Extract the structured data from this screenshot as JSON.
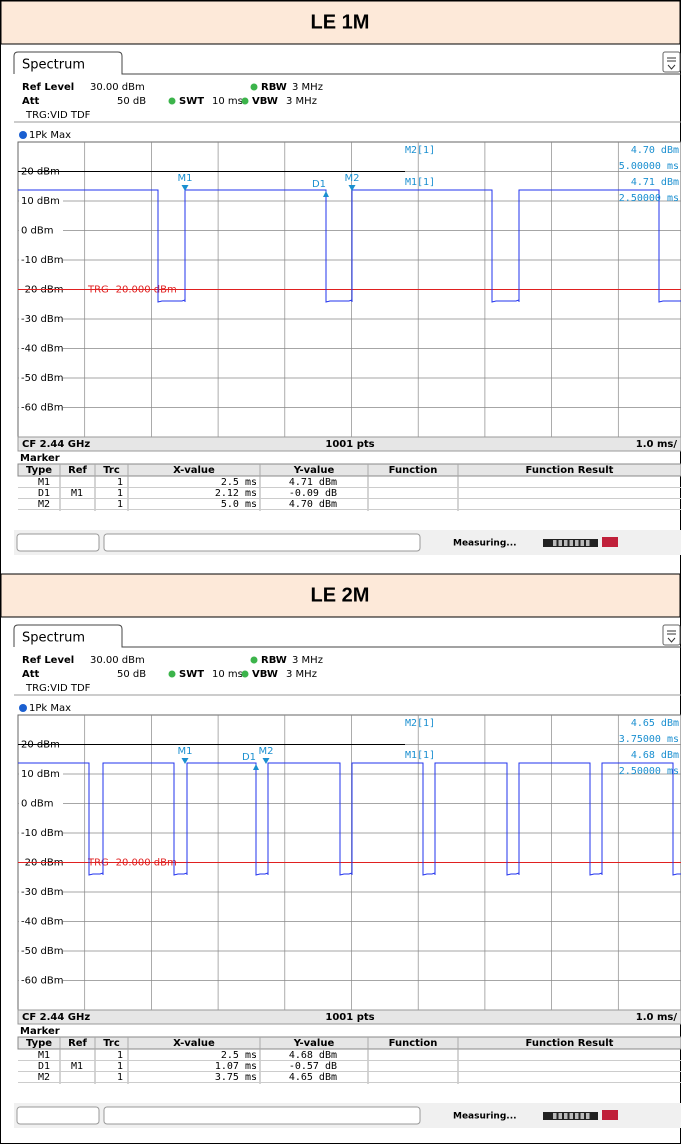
{
  "panels": [
    {
      "title": "LE 1M",
      "tab": "Spectrum",
      "ref_level_label": "Ref Level",
      "ref_level": "30.00 dBm",
      "att_label": "Att",
      "att": "50 dB",
      "swt_label": "SWT",
      "swt": "10 ms",
      "rbw_label": "RBW",
      "rbw": "3 MHz",
      "vbw_label": "VBW",
      "vbw": "3 MHz",
      "trigger": "TRG:VID TDF",
      "trace_label": "1Pk Max",
      "y_labels": [
        "20 dBm",
        "10 dBm",
        "0 dBm",
        "-10 dBm",
        "-20 dBm",
        "-30 dBm",
        "-40 dBm",
        "-50 dBm",
        "-60 dBm"
      ],
      "trigger_line": "TRG -20.000 dBm",
      "marker_readout": [
        {
          "name": "M2[1]",
          "value": "4.70 dBm",
          "x": "5.00000 ms"
        },
        {
          "name": "M1[1]",
          "value": "4.71 dBm",
          "x": "2.50000 ms"
        }
      ],
      "graph_markers": [
        "M1",
        "D1",
        "M2"
      ],
      "footer": {
        "cf": "CF 2.44 GHz",
        "pts": "1001 pts",
        "span": "1.0 ms/"
      },
      "marker_table": {
        "title": "Marker",
        "headers": [
          "Type",
          "Ref",
          "Trc",
          "X-value",
          "Y-value",
          "Function",
          "Function Result"
        ],
        "rows": [
          {
            "type": "M1",
            "trc": "1",
            "x": "2.5 ms",
            "y": "4.71 dBm"
          },
          {
            "type": "D1",
            "ref": "M1",
            "trc": "1",
            "x": "2.12 ms",
            "y": "-0.09 dB"
          },
          {
            "type": "M2",
            "trc": "1",
            "x": "5.0 ms",
            "y": "4.70 dBm"
          }
        ]
      },
      "status": "Measuring..."
    },
    {
      "title": "LE 2M",
      "tab": "Spectrum",
      "ref_level_label": "Ref Level",
      "ref_level": "30.00 dBm",
      "att_label": "Att",
      "att": "50 dB",
      "swt_label": "SWT",
      "swt": "10 ms",
      "rbw_label": "RBW",
      "rbw": "3 MHz",
      "vbw_label": "VBW",
      "vbw": "3 MHz",
      "trigger": "TRG:VID TDF",
      "trace_label": "1Pk Max",
      "y_labels": [
        "20 dBm",
        "10 dBm",
        "0 dBm",
        "-10 dBm",
        "-20 dBm",
        "-30 dBm",
        "-40 dBm",
        "-50 dBm",
        "-60 dBm"
      ],
      "trigger_line": "TRG -20.000 dBm",
      "marker_readout": [
        {
          "name": "M2[1]",
          "value": "4.65 dBm",
          "x": "3.75000 ms"
        },
        {
          "name": "M1[1]",
          "value": "4.68 dBm",
          "x": "2.50000 ms"
        }
      ],
      "graph_markers": [
        "M1",
        "D1",
        "M2"
      ],
      "footer": {
        "cf": "CF 2.44 GHz",
        "pts": "1001 pts",
        "span": "1.0 ms/"
      },
      "marker_table": {
        "title": "Marker",
        "headers": [
          "Type",
          "Ref",
          "Trc",
          "X-value",
          "Y-value",
          "Function",
          "Function Result"
        ],
        "rows": [
          {
            "type": "M1",
            "trc": "1",
            "x": "2.5 ms",
            "y": "4.68 dBm"
          },
          {
            "type": "D1",
            "ref": "M1",
            "trc": "1",
            "x": "1.07 ms",
            "y": "-0.57 dB"
          },
          {
            "type": "M2",
            "trc": "1",
            "x": "3.75 ms",
            "y": "4.65 dBm"
          }
        ]
      },
      "status": "Measuring..."
    }
  ]
}
